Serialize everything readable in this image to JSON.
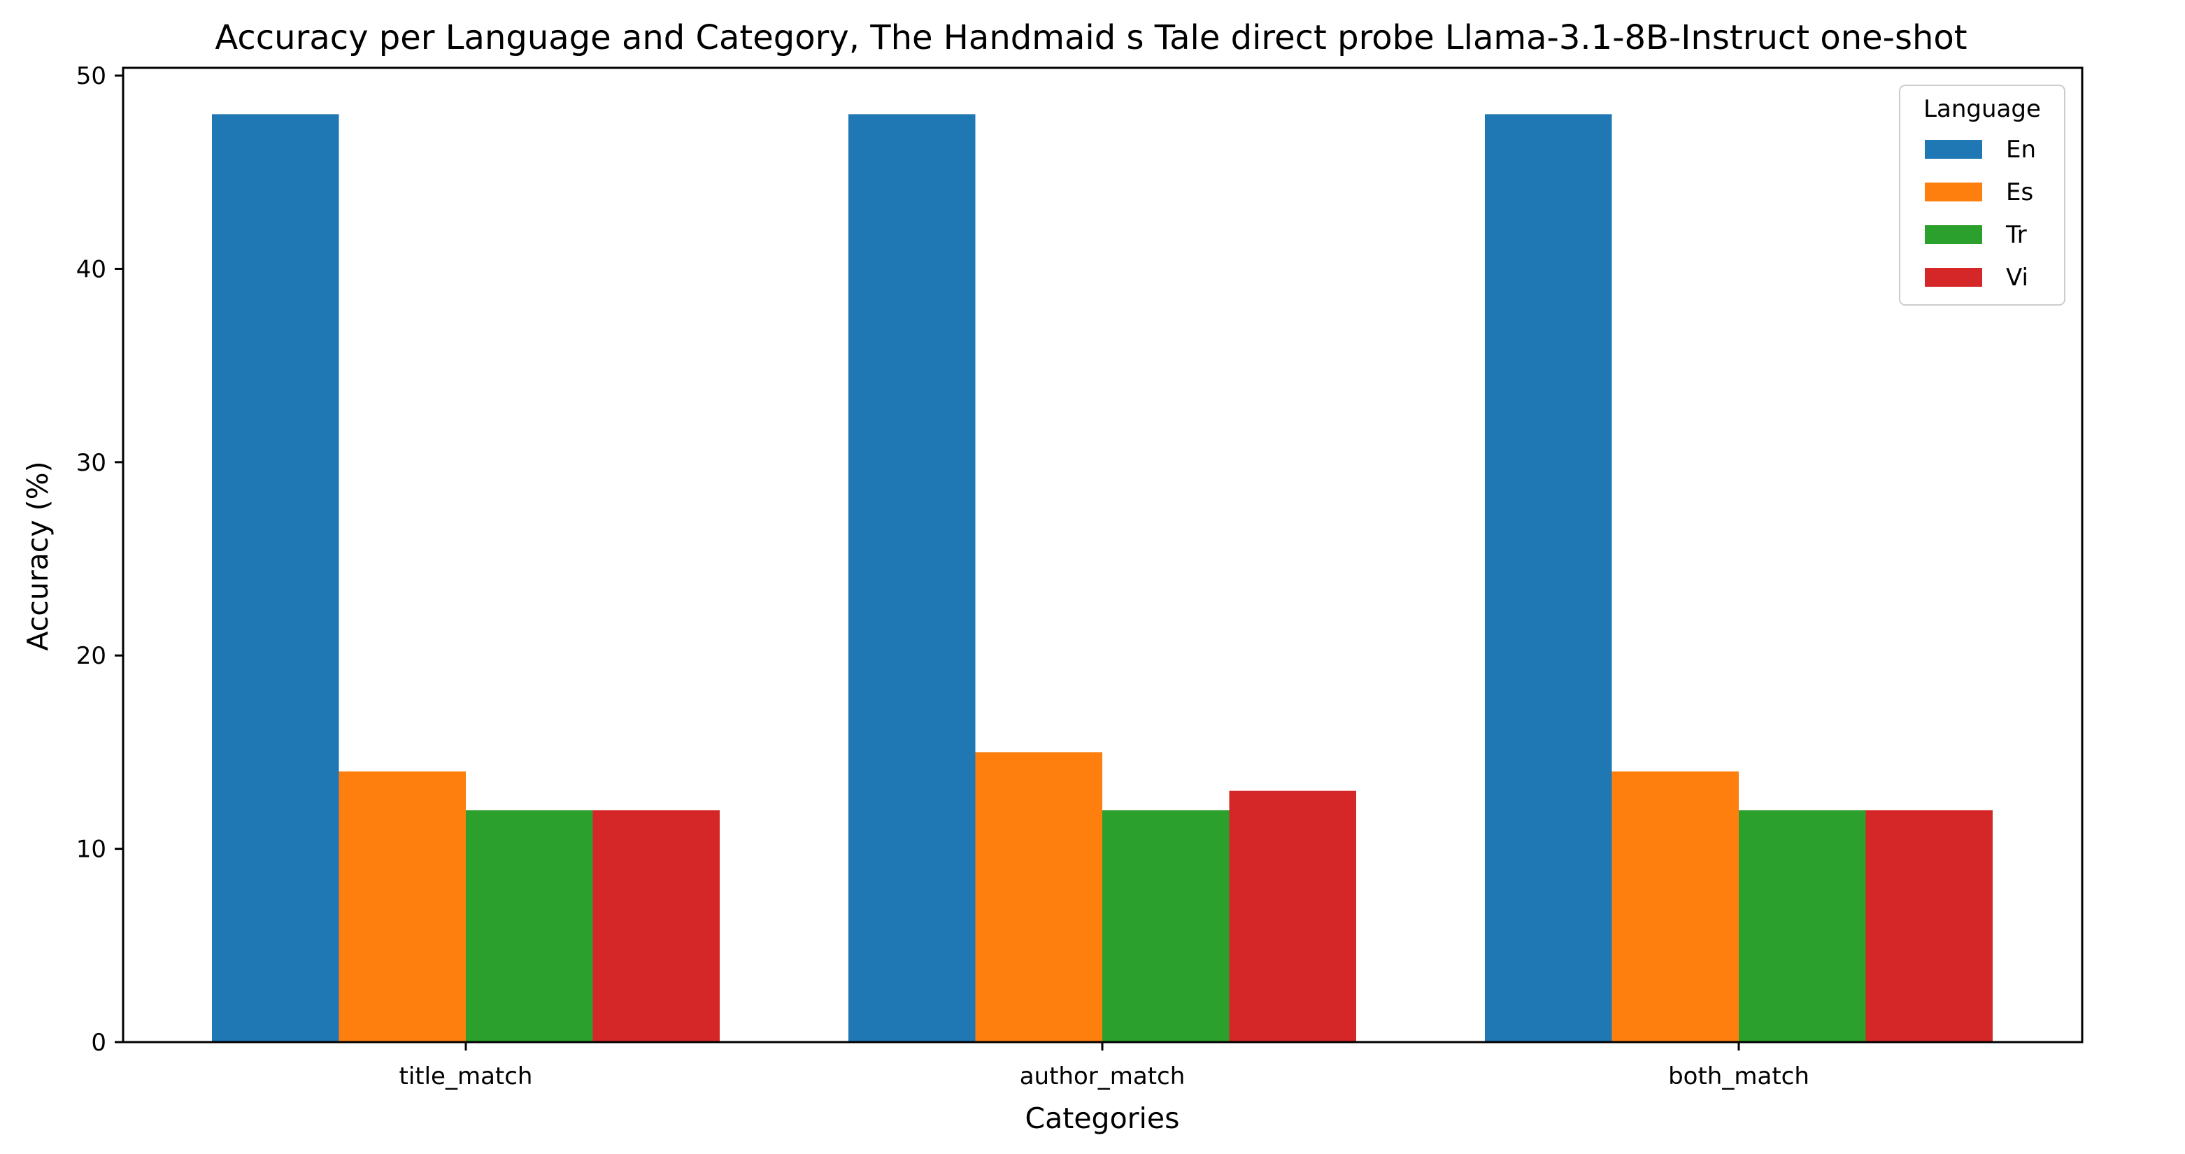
{
  "chart_data": {
    "type": "bar",
    "title": "Accuracy per Language and Category, The Handmaid s Tale direct probe Llama-3.1-8B-Instruct one-shot",
    "xlabel": "Categories",
    "ylabel": "Accuracy (%)",
    "categories": [
      "title_match",
      "author_match",
      "both_match"
    ],
    "series": [
      {
        "name": "En",
        "color": "#1f77b4",
        "values": [
          48,
          48,
          48
        ]
      },
      {
        "name": "Es",
        "color": "#ff7f0e",
        "values": [
          14,
          15,
          14
        ]
      },
      {
        "name": "Tr",
        "color": "#2ca02c",
        "values": [
          12,
          12,
          12
        ]
      },
      {
        "name": "Vi",
        "color": "#d62728",
        "values": [
          12,
          13,
          12
        ]
      }
    ],
    "ylim": [
      0,
      50.4
    ],
    "yticks": [
      0,
      10,
      20,
      30,
      40,
      50
    ],
    "grid": false,
    "legend": {
      "title": "Language",
      "placement": "top-right"
    }
  }
}
